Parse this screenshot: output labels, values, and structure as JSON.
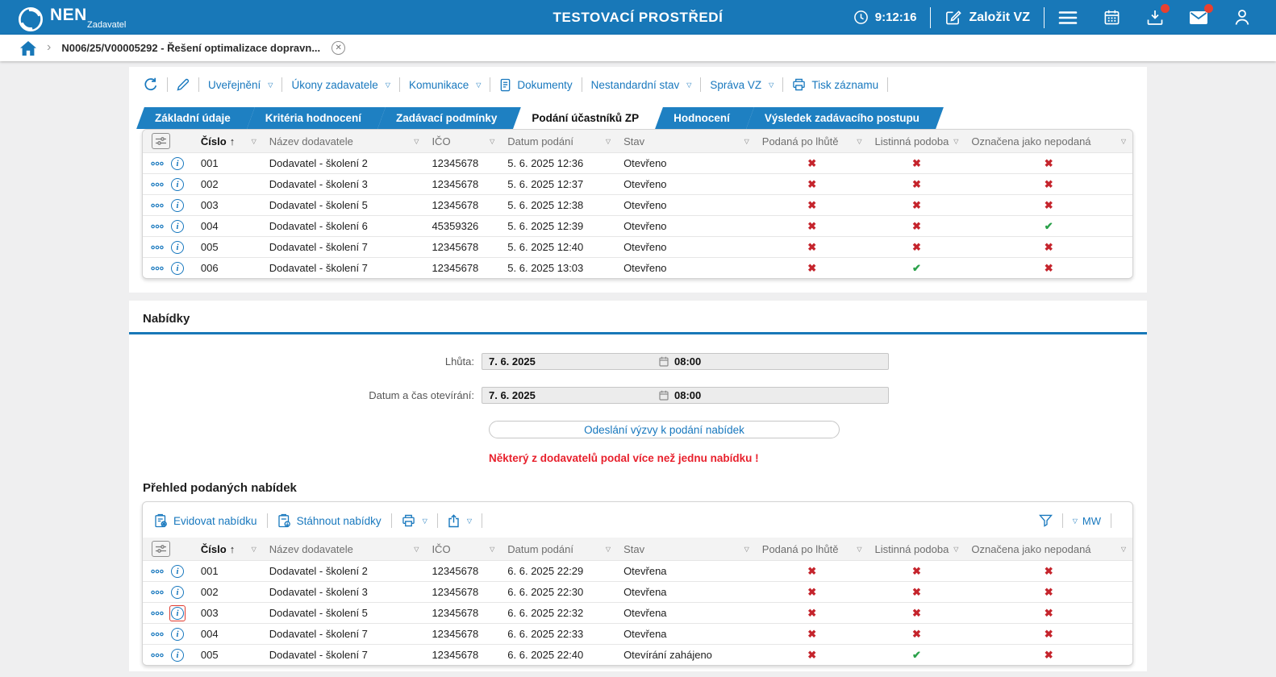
{
  "header": {
    "brand": "NEN",
    "brand_sub": "Zadavatel",
    "env_title": "TESTOVACÍ PROSTŘEDÍ",
    "clock_time": "9:12:16",
    "create_vz": "Založit VZ",
    "accent_color": "#1878b8"
  },
  "breadcrumb": {
    "item_label": "N006/25/V00005292 - Řešení optimalizace dopravn..."
  },
  "record_toolbar": {
    "items": [
      {
        "label": "Uveřejnění",
        "caret": true,
        "icon": null
      },
      {
        "label": "Úkony zadavatele",
        "caret": true,
        "icon": null
      },
      {
        "label": "Komunikace",
        "caret": true,
        "icon": null
      },
      {
        "label": "Dokumenty",
        "caret": false,
        "icon": "document-icon"
      },
      {
        "label": "Nestandardní stav",
        "caret": true,
        "icon": null
      },
      {
        "label": "Správa VZ",
        "caret": true,
        "icon": null
      },
      {
        "label": "Tisk záznamu",
        "caret": false,
        "icon": "printer-icon"
      }
    ]
  },
  "tabs": [
    {
      "label": "Základní údaje",
      "active": false
    },
    {
      "label": "Kritéria hodnocení",
      "active": false
    },
    {
      "label": "Zadávací podmínky",
      "active": false
    },
    {
      "label": "Podání účastníků ZP",
      "active": true
    },
    {
      "label": "Hodnocení",
      "active": false
    },
    {
      "label": "Výsledek zadávacího postupu",
      "active": false
    }
  ],
  "table_columns": [
    {
      "label": "Číslo",
      "sorted": "asc"
    },
    {
      "label": "Název dodavatele",
      "sorted": null
    },
    {
      "label": "IČO",
      "sorted": null
    },
    {
      "label": "Datum podání",
      "sorted": null
    },
    {
      "label": "Stav",
      "sorted": null
    },
    {
      "label": "Podaná po lhůtě",
      "sorted": null
    },
    {
      "label": "Listinná podoba",
      "sorted": null
    },
    {
      "label": "Označena jako nepodaná",
      "sorted": null
    }
  ],
  "submissions": {
    "rows": [
      {
        "num": "001",
        "supplier": "Dodavatel - školení 2",
        "ico": "12345678",
        "submitted": "5. 6. 2025 12:36",
        "status": "Otevřeno",
        "late": false,
        "paper": false,
        "marked_not_submitted": false,
        "highlight": false
      },
      {
        "num": "002",
        "supplier": "Dodavatel - školení 3",
        "ico": "12345678",
        "submitted": "5. 6. 2025 12:37",
        "status": "Otevřeno",
        "late": false,
        "paper": false,
        "marked_not_submitted": false,
        "highlight": false
      },
      {
        "num": "003",
        "supplier": "Dodavatel - školení 5",
        "ico": "12345678",
        "submitted": "5. 6. 2025 12:38",
        "status": "Otevřeno",
        "late": false,
        "paper": false,
        "marked_not_submitted": false,
        "highlight": false
      },
      {
        "num": "004",
        "supplier": "Dodavatel - školení 6",
        "ico": "45359326",
        "submitted": "5. 6. 2025 12:39",
        "status": "Otevřeno",
        "late": false,
        "paper": false,
        "marked_not_submitted": true,
        "highlight": false
      },
      {
        "num": "005",
        "supplier": "Dodavatel - školení 7",
        "ico": "12345678",
        "submitted": "5. 6. 2025 12:40",
        "status": "Otevřeno",
        "late": false,
        "paper": false,
        "marked_not_submitted": false,
        "highlight": false
      },
      {
        "num": "006",
        "supplier": "Dodavatel - školení 7",
        "ico": "12345678",
        "submitted": "5. 6. 2025 13:03",
        "status": "Otevřeno",
        "late": false,
        "paper": true,
        "marked_not_submitted": false,
        "highlight": false
      }
    ]
  },
  "offers": {
    "section_title": "Nabídky",
    "deadline_label": "Lhůta:",
    "deadline_date": "7. 6. 2025",
    "deadline_time": "08:00",
    "opening_label": "Datum a čas otevírání:",
    "opening_date": "7. 6. 2025",
    "opening_time": "08:00",
    "send_button": "Odeslání výzvy k podání nabídek",
    "warning": "Některý z dodavatelů podal více než jednu nabídku !",
    "overview_title": "Přehled podaných nabídek",
    "toolbar": {
      "register": "Evidovat nabídku",
      "download": "Stáhnout nabídky",
      "filter_code": "MW"
    },
    "rows": [
      {
        "num": "001",
        "supplier": "Dodavatel - školení 2",
        "ico": "12345678",
        "submitted": "6. 6. 2025 22:29",
        "status": "Otevřena",
        "late": false,
        "paper": false,
        "marked_not_submitted": false,
        "highlight": false
      },
      {
        "num": "002",
        "supplier": "Dodavatel - školení 3",
        "ico": "12345678",
        "submitted": "6. 6. 2025 22:30",
        "status": "Otevřena",
        "late": false,
        "paper": false,
        "marked_not_submitted": false,
        "highlight": false
      },
      {
        "num": "003",
        "supplier": "Dodavatel - školení 5",
        "ico": "12345678",
        "submitted": "6. 6. 2025 22:32",
        "status": "Otevřena",
        "late": false,
        "paper": false,
        "marked_not_submitted": false,
        "highlight": true
      },
      {
        "num": "004",
        "supplier": "Dodavatel - školení 7",
        "ico": "12345678",
        "submitted": "6. 6. 2025 22:33",
        "status": "Otevřena",
        "late": false,
        "paper": false,
        "marked_not_submitted": false,
        "highlight": false
      },
      {
        "num": "005",
        "supplier": "Dodavatel - školení 7",
        "ico": "12345678",
        "submitted": "6. 6. 2025 22:40",
        "status": "Otevírání zahájeno",
        "late": false,
        "paper": true,
        "marked_not_submitted": false,
        "highlight": false
      }
    ]
  },
  "marks": {
    "yes": "✔",
    "no": "✖"
  },
  "colors": {
    "mark_no": "#c5242c",
    "mark_yes": "#2aa14a",
    "warning": "#e8212d",
    "link": "#1878be"
  }
}
